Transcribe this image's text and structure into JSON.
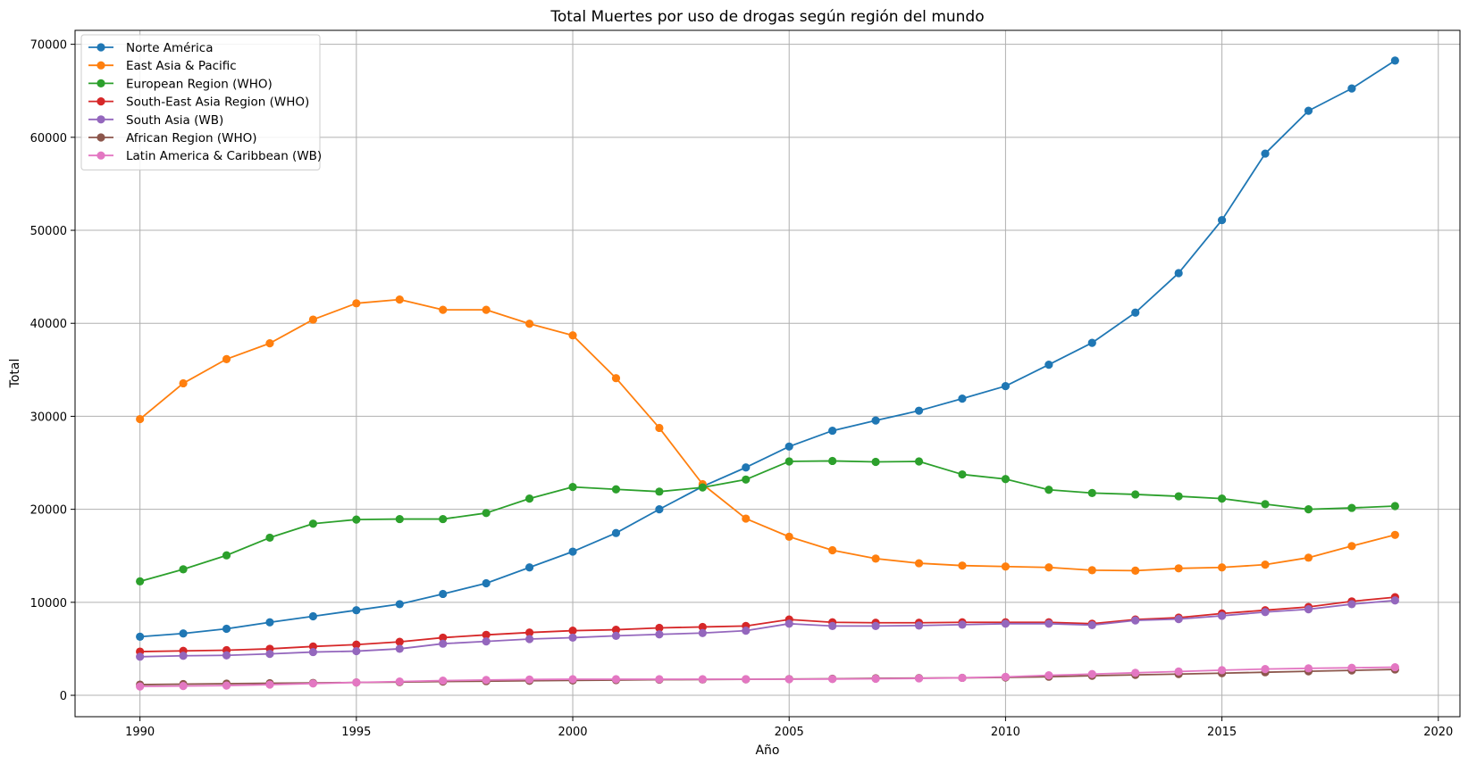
{
  "chart_data": {
    "type": "line",
    "title": "Total Muertes por uso de drogas según región del mundo",
    "xlabel": "Año",
    "ylabel": "Total",
    "xlim": [
      1988.5,
      2020.5
    ],
    "ylim": [
      -2300,
      71500
    ],
    "xticks": [
      1990,
      1995,
      2000,
      2005,
      2010,
      2015,
      2020
    ],
    "yticks": [
      0,
      10000,
      20000,
      30000,
      40000,
      50000,
      60000,
      70000
    ],
    "grid": true,
    "legend_position": "upper-left",
    "x": [
      1990,
      1991,
      1992,
      1993,
      1994,
      1995,
      1996,
      1997,
      1998,
      1999,
      2000,
      2001,
      2002,
      2003,
      2004,
      2005,
      2006,
      2007,
      2008,
      2009,
      2010,
      2011,
      2012,
      2013,
      2014,
      2015,
      2016,
      2017,
      2018,
      2019
    ],
    "series": [
      {
        "name": "Norte América",
        "color": "#1f77b4",
        "values": [
          6300,
          6650,
          7150,
          7850,
          8500,
          9150,
          9800,
          10900,
          12050,
          13750,
          15450,
          17450,
          20000,
          22450,
          24500,
          26750,
          28450,
          29550,
          30600,
          31900,
          33250,
          35550,
          37900,
          41150,
          45400,
          51100,
          58250,
          62850,
          65250,
          68250
        ]
      },
      {
        "name": "East Asia & Pacific",
        "color": "#ff7f0e",
        "values": [
          29700,
          33550,
          36150,
          37850,
          40400,
          42150,
          42550,
          41450,
          41450,
          39950,
          38700,
          34100,
          28750,
          22700,
          19000,
          17050,
          15600,
          14700,
          14200,
          13950,
          13850,
          13750,
          13450,
          13400,
          13650,
          13750,
          14050,
          14800,
          16050,
          17250
        ]
      },
      {
        "name": "European Region (WHO)",
        "color": "#2ca02c",
        "values": [
          12250,
          13550,
          15050,
          16950,
          18450,
          18900,
          18950,
          18950,
          19600,
          21150,
          22400,
          22150,
          21900,
          22350,
          23200,
          25150,
          25200,
          25100,
          25150,
          23750,
          23250,
          22100,
          21750,
          21600,
          21400,
          21150,
          20550,
          20000,
          20150,
          20350
        ]
      },
      {
        "name": "South-East Asia Region (WHO)",
        "color": "#d62728",
        "values": [
          4700,
          4780,
          4850,
          5000,
          5250,
          5450,
          5750,
          6200,
          6500,
          6750,
          6950,
          7050,
          7250,
          7350,
          7450,
          8150,
          7850,
          7800,
          7800,
          7850,
          7850,
          7850,
          7700,
          8150,
          8350,
          8800,
          9150,
          9500,
          10100,
          10550
        ]
      },
      {
        "name": "South Asia (WB)",
        "color": "#9467bd",
        "values": [
          4150,
          4250,
          4300,
          4450,
          4650,
          4750,
          5000,
          5550,
          5800,
          6050,
          6200,
          6400,
          6550,
          6700,
          6950,
          7700,
          7450,
          7450,
          7500,
          7600,
          7700,
          7700,
          7550,
          8050,
          8200,
          8550,
          8950,
          9250,
          9800,
          10200
        ]
      },
      {
        "name": "African Region (WHO)",
        "color": "#8c564b",
        "values": [
          1150,
          1200,
          1250,
          1300,
          1330,
          1380,
          1420,
          1480,
          1520,
          1560,
          1600,
          1640,
          1680,
          1700,
          1720,
          1750,
          1780,
          1830,
          1850,
          1880,
          1920,
          2000,
          2100,
          2200,
          2280,
          2380,
          2480,
          2580,
          2680,
          2780
        ]
      },
      {
        "name": "Latin America & Caribbean (WB)",
        "color": "#e377c2",
        "values": [
          950,
          1000,
          1050,
          1150,
          1270,
          1380,
          1480,
          1580,
          1650,
          1700,
          1730,
          1730,
          1730,
          1730,
          1730,
          1730,
          1750,
          1780,
          1820,
          1880,
          1980,
          2150,
          2280,
          2420,
          2560,
          2700,
          2820,
          2900,
          2960,
          3020
        ]
      }
    ]
  }
}
